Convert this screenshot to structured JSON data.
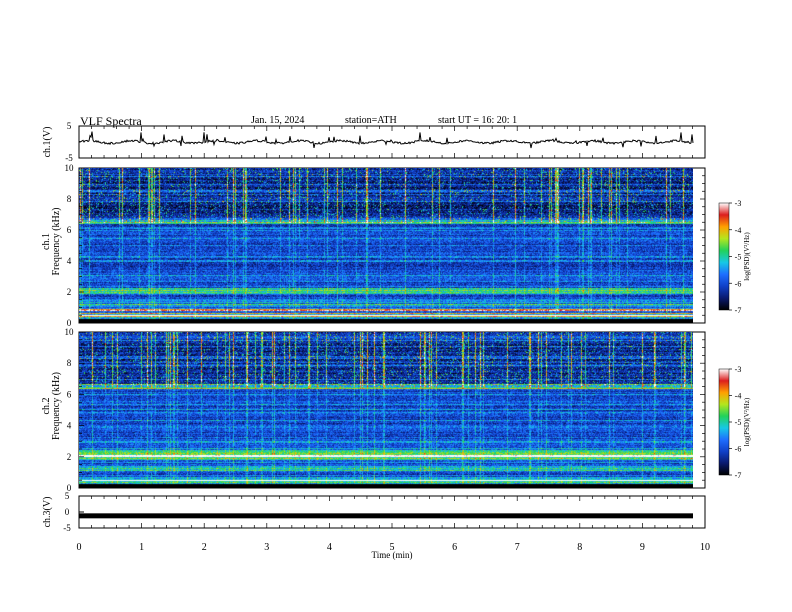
{
  "header": {
    "title": "VLF  Spectra",
    "date": "Jan. 15, 2024",
    "station": "station=ATH",
    "start": "start  UT  =    16: 20: 1"
  },
  "chart_data": [
    {
      "type": "line",
      "panel": "ch1-waveform",
      "ylabel": "ch.1(V)",
      "ylim": [
        -5,
        5
      ],
      "yticks": [
        "5",
        "-5"
      ],
      "xlim": [
        0,
        10
      ],
      "series": [
        {
          "approx_level": 0,
          "color": "#000000"
        }
      ]
    },
    {
      "type": "heatmap",
      "panel": "ch1-spectrogram",
      "ylabel": "ch.1\nFrequency  (kHz)",
      "ylim": [
        0,
        10
      ],
      "yticks": [
        "0",
        "2",
        "4",
        "6",
        "8",
        "10"
      ],
      "xlim": [
        0,
        9.8
      ],
      "features_khz": {
        "bright_band": [
          1.9,
          2.3
        ],
        "red_line": 0.85,
        "spheric_floor": 6.5
      },
      "colorbar": {
        "label": "log(PSD)(V²/Hz)",
        "range": [
          -7,
          -3
        ],
        "ticks": [
          "-3",
          "-4",
          "-5",
          "-6",
          "-7"
        ]
      }
    },
    {
      "type": "heatmap",
      "panel": "ch2-spectrogram",
      "ylabel": "ch.2\nFrequency  (kHz)",
      "ylim": [
        0,
        10
      ],
      "yticks": [
        "0",
        "2",
        "4",
        "6",
        "8",
        "10"
      ],
      "xlim": [
        0,
        9.8
      ],
      "features_khz": {
        "bright_band": [
          1.8,
          2.5
        ],
        "red_line": 2.1,
        "spheric_floor": 6.5
      },
      "colorbar": {
        "label": "log(PSD)(V²/Hz)",
        "range": [
          -7,
          -3
        ],
        "ticks": [
          "-3",
          "-4",
          "-5",
          "-6",
          "-7"
        ]
      }
    },
    {
      "type": "line",
      "panel": "ch3-waveform",
      "ylabel": "ch.3(V)",
      "ylim": [
        -5,
        5
      ],
      "yticks": [
        "5",
        "0",
        "-5"
      ],
      "xlim": [
        0,
        10
      ],
      "series": [
        {
          "approx_level": -1.2,
          "color": "#000000"
        }
      ]
    }
  ],
  "xaxis": {
    "label": "Time  (min)",
    "ticks": [
      "0",
      "1",
      "2",
      "3",
      "4",
      "5",
      "6",
      "7",
      "8",
      "9",
      "10"
    ]
  },
  "colormap": [
    "#000000",
    "#0a1a6e",
    "#1040c8",
    "#1e6eff",
    "#17c8e6",
    "#22d25a",
    "#b4e61e",
    "#ffa000",
    "#dc1e1e",
    "#ffffff"
  ]
}
